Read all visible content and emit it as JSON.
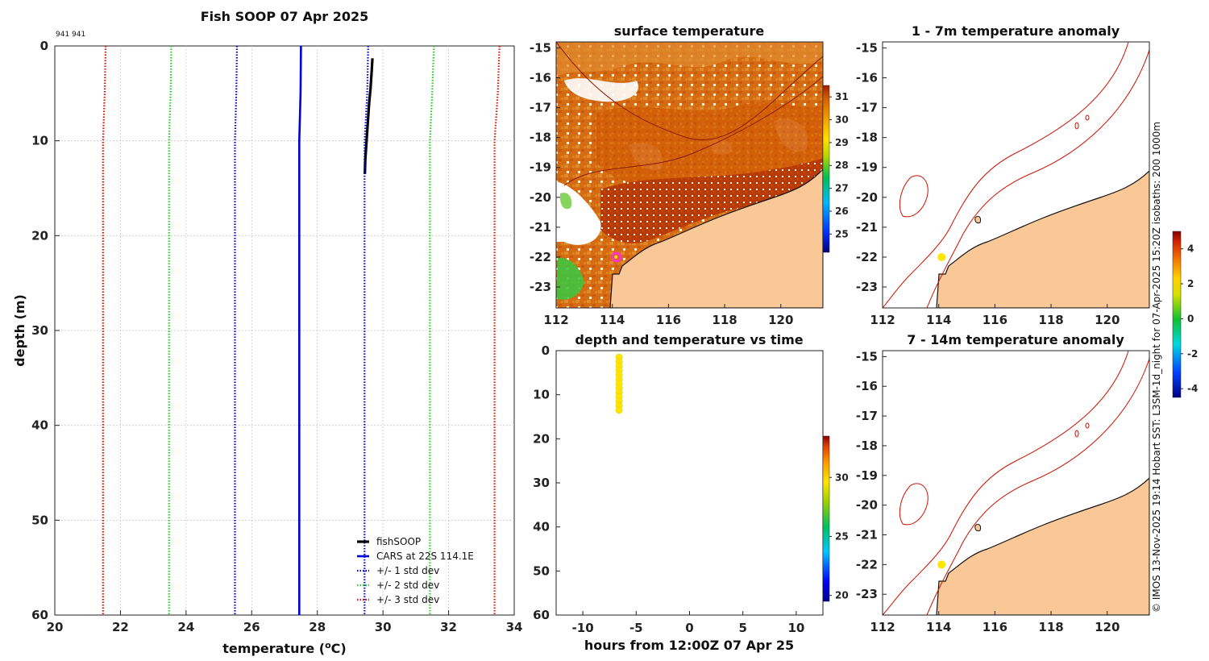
{
  "figure_title": "Fish SOOP 07 Apr 2025",
  "platform_id": "941 941",
  "credit": "© IMOS 13-Nov-2025 19:14 Hobart SST: L3SM-1d_night for 07-Apr-2025 15:20Z isobaths: 200  1000m",
  "colors": {
    "fishsoop": "#000000",
    "cars": "#0000dd",
    "std1": "#0000cc",
    "std2": "#22cc22",
    "std3": "#dd1100",
    "land": "#f9c896",
    "sst_warm": "#d96a0a",
    "marker": "#ffe600",
    "ship_marker": "#ff33cc"
  },
  "chart_data": [
    {
      "id": "profile",
      "type": "line",
      "title": "Fish SOOP 07 Apr 2025",
      "xlabel": "temperature (",
      "xlabel_sup": "o",
      "xlabel_end": "C)",
      "ylabel": "depth (m)",
      "xlim": [
        20,
        34
      ],
      "ylim": [
        0,
        60
      ],
      "xticks": [
        "20",
        "22",
        "24",
        "26",
        "28",
        "30",
        "32",
        "34"
      ],
      "yticks": [
        "0",
        "10",
        "20",
        "30",
        "40",
        "50",
        "60"
      ],
      "grid": true,
      "series": [
        {
          "name": "fishSOOP",
          "style": "solid",
          "color": "#000000",
          "width": 3.2,
          "points": [
            [
              29.68,
              1.3
            ],
            [
              29.65,
              3
            ],
            [
              29.62,
              4.5
            ],
            [
              29.58,
              6
            ],
            [
              29.55,
              7.5
            ],
            [
              29.52,
              9
            ],
            [
              29.49,
              10.5
            ],
            [
              29.46,
              12
            ],
            [
              29.45,
              13.5
            ]
          ]
        },
        {
          "name": "CARS at 22S 114.1E",
          "style": "solid",
          "color": "#0000dd",
          "width": 2.6,
          "points": [
            [
              27.5,
              0
            ],
            [
              27.49,
              5
            ],
            [
              27.45,
              10
            ],
            [
              27.45,
              20
            ],
            [
              27.45,
              30
            ],
            [
              27.45,
              40
            ],
            [
              27.45,
              50
            ],
            [
              27.45,
              60
            ]
          ]
        },
        {
          "name": "+/- 1 std dev",
          "style": "dotted",
          "color": "#0000cc",
          "width": 2.2,
          "points": [
            [
              25.55,
              0
            ],
            [
              25.53,
              5
            ],
            [
              25.49,
              10
            ],
            [
              25.49,
              60
            ]
          ]
        },
        {
          "name": "+/- 1 std dev upper",
          "style": "dotted",
          "color": "#0000cc",
          "width": 2.2,
          "legend": false,
          "points": [
            [
              29.55,
              0
            ],
            [
              29.52,
              5
            ],
            [
              29.44,
              10
            ],
            [
              29.44,
              60
            ]
          ]
        },
        {
          "name": "+/- 2 std dev",
          "style": "dotted",
          "color": "#22cc22",
          "width": 2.2,
          "points": [
            [
              23.55,
              0
            ],
            [
              23.53,
              5
            ],
            [
              23.48,
              10
            ],
            [
              23.48,
              60
            ]
          ]
        },
        {
          "name": "+/- 2 std dev upper",
          "style": "dotted",
          "color": "#22cc22",
          "width": 2.2,
          "legend": false,
          "points": [
            [
              31.55,
              0
            ],
            [
              31.5,
              5
            ],
            [
              31.43,
              10
            ],
            [
              31.43,
              60
            ]
          ]
        },
        {
          "name": "+/- 3 std dev",
          "style": "dotted",
          "color": "#dd1100",
          "width": 2.2,
          "points": [
            [
              21.55,
              0
            ],
            [
              21.52,
              5
            ],
            [
              21.47,
              10
            ],
            [
              21.47,
              60
            ]
          ]
        },
        {
          "name": "+/- 3 std dev upper",
          "style": "dotted",
          "color": "#dd1100",
          "width": 2.2,
          "legend": false,
          "points": [
            [
              33.55,
              0
            ],
            [
              33.5,
              5
            ],
            [
              33.4,
              10
            ],
            [
              33.4,
              60
            ]
          ]
        }
      ],
      "legend": [
        "fishSOOP",
        "CARS at 22S 114.1E",
        "+/- 1 std dev",
        "+/- 2 std dev",
        "+/- 3 std dev"
      ],
      "legend_position": "bottom-right"
    },
    {
      "id": "sst_map",
      "type": "heatmap",
      "title": "surface temperature",
      "xlim": [
        112,
        121.5
      ],
      "ylim": [
        -23.7,
        -14.8
      ],
      "xticks": [
        "112",
        "114",
        "116",
        "118",
        "120"
      ],
      "yticks": [
        "-15",
        "-16",
        "-17",
        "-18",
        "-19",
        "-20",
        "-21",
        "-22",
        "-23"
      ],
      "colorbar_ticks": [
        "25",
        "26",
        "27",
        "28",
        "29",
        "30",
        "31"
      ],
      "colorbar_range": [
        24.2,
        31.5
      ],
      "ship_position": [
        114.15,
        -22.0
      ]
    },
    {
      "id": "depth_time",
      "type": "scatter",
      "title": "depth and temperature vs time",
      "xlabel": "hours from 12:00Z 07 Apr 25",
      "xlim": [
        -12.5,
        12.5
      ],
      "ylim": [
        0,
        60
      ],
      "xticks": [
        "-10",
        "-5",
        "0",
        "5",
        "10"
      ],
      "yticks": [
        "0",
        "10",
        "20",
        "30",
        "40",
        "50",
        "60"
      ],
      "colorbar_ticks": [
        "20",
        "25",
        "30"
      ],
      "colorbar_range": [
        19.5,
        33.5
      ],
      "points": [
        {
          "x": -6.6,
          "y": 1.5,
          "t": 29.7
        },
        {
          "x": -6.6,
          "y": 2.5,
          "t": 29.7
        },
        {
          "x": -6.6,
          "y": 3.5,
          "t": 29.7
        },
        {
          "x": -6.6,
          "y": 4.5,
          "t": 29.6
        },
        {
          "x": -6.6,
          "y": 5.5,
          "t": 29.6
        },
        {
          "x": -6.6,
          "y": 6.5,
          "t": 29.6
        },
        {
          "x": -6.6,
          "y": 7.5,
          "t": 29.5
        },
        {
          "x": -6.6,
          "y": 8.5,
          "t": 29.5
        },
        {
          "x": -6.6,
          "y": 9.5,
          "t": 29.5
        },
        {
          "x": -6.6,
          "y": 10.5,
          "t": 29.5
        },
        {
          "x": -6.6,
          "y": 11.5,
          "t": 29.5
        },
        {
          "x": -6.6,
          "y": 12.5,
          "t": 29.4
        },
        {
          "x": -6.6,
          "y": 13.5,
          "t": 29.4
        }
      ]
    },
    {
      "id": "anom_1_7",
      "type": "heatmap",
      "title": "1 - 7m temperature anomaly",
      "xlim": [
        112,
        121.5
      ],
      "ylim": [
        -23.7,
        -14.8
      ],
      "xticks": [
        "112",
        "114",
        "116",
        "118",
        "120"
      ],
      "yticks": [
        "-15",
        "-16",
        "-17",
        "-18",
        "-19",
        "-20",
        "-21",
        "-22",
        "-23"
      ],
      "marker_position": [
        114.1,
        -22.0
      ],
      "marker_anomaly": 2.0
    },
    {
      "id": "anom_7_14",
      "type": "heatmap",
      "title": "7 - 14m temperature anomaly",
      "xlim": [
        112,
        121.5
      ],
      "ylim": [
        -23.7,
        -14.8
      ],
      "xticks": [
        "112",
        "114",
        "116",
        "118",
        "120"
      ],
      "yticks": [
        "-15",
        "-16",
        "-17",
        "-18",
        "-19",
        "-20",
        "-21",
        "-22",
        "-23"
      ],
      "marker_position": [
        114.1,
        -22.0
      ],
      "marker_anomaly": 2.0
    },
    {
      "id": "anomaly_colorbar",
      "type": "colorbar",
      "range": [
        -4.5,
        5.0
      ],
      "ticks": [
        "4",
        "2",
        "0",
        "-2",
        "-4"
      ]
    }
  ]
}
